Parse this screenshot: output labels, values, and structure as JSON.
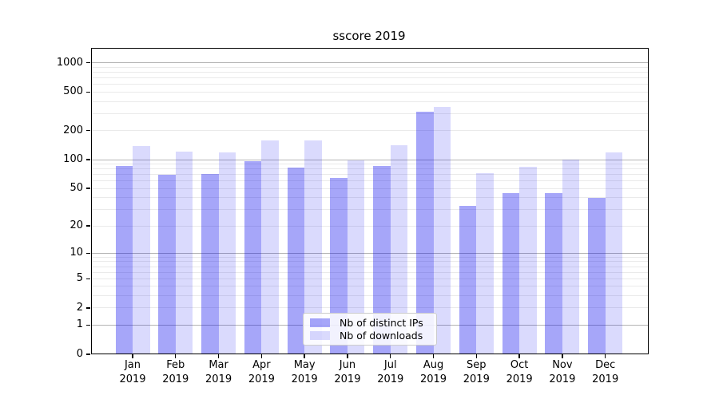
{
  "figure": {
    "title": "sscore 2019"
  },
  "chart_data": {
    "type": "bar",
    "title": "sscore 2019",
    "categories": [
      "Jan",
      "Feb",
      "Mar",
      "Apr",
      "May",
      "Jun",
      "Jul",
      "Aug",
      "Sep",
      "Oct",
      "Nov",
      "Dec"
    ],
    "category_year": "2019",
    "series": [
      {
        "name": "Nb of distinct IPs",
        "color": "rgba(0,0,238,0.35)",
        "values": [
          86,
          69,
          71,
          97,
          82,
          65,
          86,
          311,
          33,
          45,
          45,
          40
        ]
      },
      {
        "name": "Nb of downloads",
        "color": "rgba(0,0,238,0.145)",
        "values": [
          138,
          120,
          118,
          158,
          158,
          98,
          142,
          348,
          72,
          85,
          100,
          119
        ]
      }
    ],
    "xlabel": "",
    "ylabel": "",
    "y_scale": "log1p",
    "y_ticks": [
      0,
      1,
      2,
      5,
      10,
      20,
      50,
      100,
      200,
      500,
      1000
    ],
    "ylim": [
      0,
      1440
    ],
    "grid": "horizontal; dark gray lines at 1,10,100,1000; faint log minors",
    "legend_position": "lower center",
    "colors": {
      "major_grid": "#b4b4b4",
      "minor_grid": "#eaeaea",
      "spine": "#000000",
      "legend_border": "#cccccc"
    }
  },
  "legend": {
    "items": [
      {
        "label": "Nb of distinct IPs"
      },
      {
        "label": "Nb of downloads"
      }
    ]
  }
}
